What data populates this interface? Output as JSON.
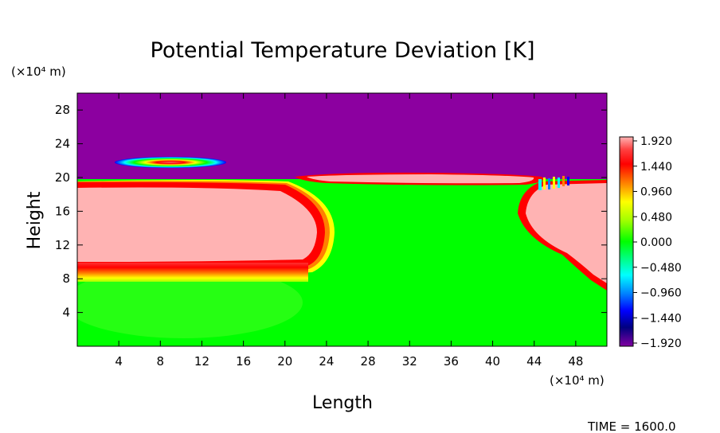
{
  "chart_data": {
    "type": "heatmap",
    "title": "Potential Temperature Deviation [K]",
    "xlabel": "Length",
    "ylabel": "Height",
    "x_unit": "(×10⁴ m)",
    "y_unit": "(×10⁴ m)",
    "xlim": [
      0,
      51
    ],
    "ylim": [
      0,
      30
    ],
    "x_ticks": [
      4,
      8,
      12,
      16,
      20,
      24,
      28,
      32,
      36,
      40,
      44,
      48
    ],
    "y_ticks": [
      4,
      8,
      12,
      16,
      20,
      24,
      28
    ],
    "colorbar": {
      "labels": [
        "1.920",
        "1.440",
        "0.960",
        "0.480",
        "0.000",
        "−0.480",
        "−0.960",
        "−1.440",
        "−1.920"
      ],
      "range": [
        -1.92,
        1.92
      ],
      "colors": [
        "#ffb3b3",
        "#ff0000",
        "#ff8000",
        "#ffff00",
        "#00ff00",
        "#00ffff",
        "#0000ff",
        "#000080",
        "#8000a0"
      ]
    },
    "regions": [
      {
        "name": "upper",
        "value": -1.92,
        "y_range": [
          20,
          30
        ]
      },
      {
        "name": "left-warm-block",
        "value": 1.92,
        "x_range": [
          0,
          23
        ],
        "y_range": [
          9,
          19
        ]
      },
      {
        "name": "right-warm-block",
        "value": 1.92,
        "x_range": [
          42,
          51
        ],
        "y_range": [
          8,
          20
        ]
      },
      {
        "name": "middle",
        "value": 0.0,
        "x_range": [
          23,
          42
        ],
        "y_range": [
          0,
          20
        ]
      },
      {
        "name": "upper-lens",
        "value": 1.92,
        "x_center": 10,
        "y_center": 22
      }
    ],
    "time_label": "TIME = 1600.0"
  }
}
